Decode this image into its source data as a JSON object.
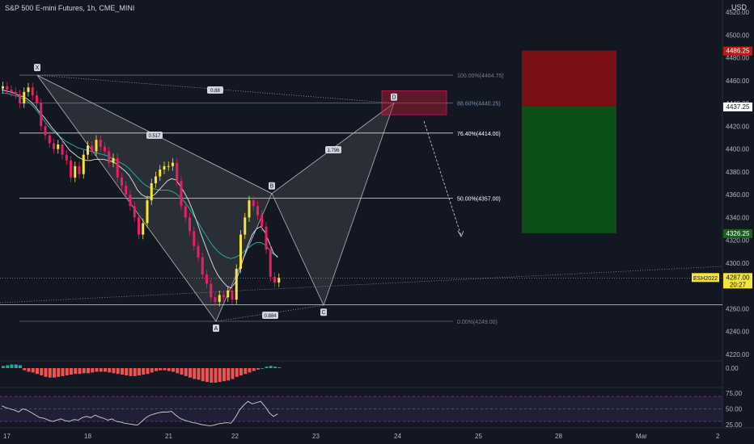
{
  "header": {
    "title": "S&P 500 E-mini Futures, 1h, CME_MINI",
    "currency": "USD"
  },
  "price_axis": {
    "ticks": [
      "4520.00",
      "4500.00",
      "4480.00",
      "4460.00",
      "4440.00",
      "4420.00",
      "4400.00",
      "4380.00",
      "4360.00",
      "4340.00",
      "4320.00",
      "4300.00",
      "4280.00",
      "4260.00",
      "4240.00",
      "4220.00"
    ],
    "badges": [
      {
        "value": "4486.25",
        "bg": "#b71c1c",
        "fg": "#ffffff"
      },
      {
        "value": "4437.25",
        "bg": "#ffffff",
        "fg": "#131722"
      },
      {
        "value": "4326.25",
        "bg": "#1b5e20",
        "fg": "#ffffff"
      }
    ],
    "last_price": {
      "symbol": "ESH2022",
      "value": "4287.00",
      "countdown": "20:27"
    }
  },
  "time_axis": {
    "labels": [
      "17",
      "18",
      "21",
      "22",
      "23",
      "24",
      "25",
      "28",
      "Mar",
      "2"
    ]
  },
  "pattern": {
    "points": [
      "X",
      "A",
      "B",
      "C",
      "D"
    ],
    "ratios": [
      "0.88",
      "0.517",
      "1.796",
      "0.884"
    ]
  },
  "fib_levels": [
    {
      "label": "100.00%(4464.75)",
      "color": "#787b86"
    },
    {
      "label": "88.60%(4440.25)",
      "color": "#6f8fc7"
    },
    {
      "label": "76.40%(4414.00)",
      "color": "#ffffff"
    },
    {
      "label": "50.00%(4357.00)",
      "color": "#ffffff"
    },
    {
      "label": "0.00%(4249.00)",
      "color": "#787b86"
    }
  ],
  "position": {
    "entry": 4437.25,
    "stop": 4486.25,
    "target": 4326.25,
    "stop_color": "#7a1016",
    "target_color": "#0d5016"
  },
  "macd_axis": {
    "ticks": [
      "0.00"
    ]
  },
  "rsi_axis": {
    "ticks": [
      "75.00",
      "50.00",
      "25.00"
    ]
  },
  "chart_data": {
    "type": "candlestick",
    "title": "S&P 500 E-mini Futures, 1h, CME_MINI",
    "currency": "USD",
    "x_labels": [
      "17",
      "18",
      "21",
      "22",
      "23",
      "24",
      "25",
      "28",
      "Mar",
      "2"
    ],
    "ylim": [
      4210,
      4530
    ],
    "closes": [
      4455,
      4452,
      4450,
      4448,
      4440,
      4450,
      4454,
      4447,
      4440,
      4420,
      4412,
      4405,
      4400,
      4404,
      4395,
      4390,
      4375,
      4385,
      4378,
      4395,
      4403,
      4398,
      4408,
      4402,
      4398,
      4388,
      4392,
      4375,
      4368,
      4360,
      4350,
      4340,
      4325,
      4335,
      4355,
      4370,
      4376,
      4382,
      4385,
      4385,
      4388,
      4372,
      4350,
      4340,
      4328,
      4315,
      4305,
      4290,
      4282,
      4270,
      4266,
      4272,
      4270,
      4276,
      4268,
      4295,
      4325,
      4340,
      4355,
      4350,
      4342,
      4332,
      4312,
      4288,
      4283,
      4287
    ],
    "ma_fast": [
      4452,
      4451,
      4450,
      4449,
      4447,
      4446,
      4444,
      4441,
      4437,
      4432,
      4428,
      4423,
      4418,
      4414,
      4409,
      4404,
      4399,
      4396,
      4393,
      4391,
      4390,
      4390,
      4391,
      4391,
      4391,
      4390,
      4389,
      4387,
      4384,
      4381,
      4377,
      4371,
      4364,
      4360,
      4358,
      4358,
      4360,
      4364,
      4368,
      4372,
      4374,
      4373,
      4368,
      4362,
      4355,
      4346,
      4336,
      4325,
      4315,
      4305,
      4296,
      4289,
      4284,
      4280,
      4278,
      4283,
      4293,
      4305,
      4316,
      4325,
      4330,
      4332,
      4327,
      4318,
      4309,
      4305
    ],
    "ma_slow": [
      4449,
      4449,
      4448,
      4447,
      4446,
      4444,
      4442,
      4439,
      4435,
      4430,
      4425,
      4420,
      4416,
      4413,
      4410,
      4407,
      4405,
      4403,
      4401,
      4400,
      4399,
      4398,
      4397,
      4396,
      4395,
      4394,
      4392,
      4390,
      4388,
      4386,
      4383,
      4379,
      4375,
      4371,
      4368,
      4366,
      4365,
      4364,
      4364,
      4364,
      4363,
      4361,
      4358,
      4354,
      4349,
      4343,
      4337,
      4331,
      4325,
      4319,
      4314,
      4310,
      4307,
      4305,
      4304,
      4305,
      4307,
      4310,
      4313,
      4316,
      4318,
      4318,
      4316,
      4312,
      4308,
      4306
    ],
    "harmonic_pattern": {
      "name": "XABCD",
      "points": {
        "X": 4464.75,
        "A": 4249.0,
        "B": 4361.0,
        "C": 4263.0,
        "D": 4440.25
      },
      "ratios": [
        0.88,
        0.517,
        1.796,
        0.884
      ]
    },
    "fib_levels": [
      {
        "pct": 100.0,
        "price": 4464.75
      },
      {
        "pct": 88.6,
        "price": 4440.25
      },
      {
        "pct": 76.4,
        "price": 4414.0
      },
      {
        "pct": 50.0,
        "price": 4357.0
      },
      {
        "pct": 0.0,
        "price": 4249.0
      }
    ],
    "short_position": {
      "entry": 4437.25,
      "stop": 4486.25,
      "target": 4326.25
    },
    "last_price": 4287.0,
    "macd_hist": [
      0.3,
      0.4,
      0.5,
      0.5,
      0.4,
      -0.3,
      -0.5,
      -0.6,
      -0.8,
      -1.0,
      -1.2,
      -1.3,
      -1.3,
      -1.2,
      -1.1,
      -1.0,
      -0.9,
      -0.8,
      -0.8,
      -0.7,
      -0.7,
      -0.6,
      -0.5,
      -0.5,
      -0.5,
      -0.6,
      -0.7,
      -0.8,
      -0.9,
      -1.0,
      -1.1,
      -1.1,
      -1.0,
      -0.9,
      -0.8,
      -0.6,
      -0.4,
      -0.3,
      -0.3,
      -0.4,
      -0.5,
      -0.7,
      -0.9,
      -1.1,
      -1.3,
      -1.5,
      -1.6,
      -1.8,
      -1.9,
      -2.0,
      -2.0,
      -1.9,
      -1.8,
      -1.7,
      -1.5,
      -1.2,
      -1.0,
      -0.8,
      -0.6,
      -0.4,
      -0.2,
      0.0,
      0.2,
      0.3,
      0.2,
      0.1
    ],
    "rsi": [
      55,
      52,
      50,
      48,
      45,
      50,
      48,
      44,
      40,
      36,
      35,
      32,
      30,
      32,
      34,
      31,
      30,
      33,
      32,
      36,
      38,
      36,
      40,
      37,
      35,
      32,
      34,
      30,
      29,
      27,
      26,
      25,
      24,
      30,
      36,
      40,
      42,
      44,
      45,
      45,
      46,
      40,
      35,
      32,
      30,
      28,
      27,
      25,
      24,
      23,
      24,
      26,
      27,
      28,
      27,
      36,
      48,
      56,
      62,
      58,
      60,
      62,
      54,
      44,
      38,
      42
    ],
    "rsi_levels": [
      70,
      50,
      30
    ]
  }
}
